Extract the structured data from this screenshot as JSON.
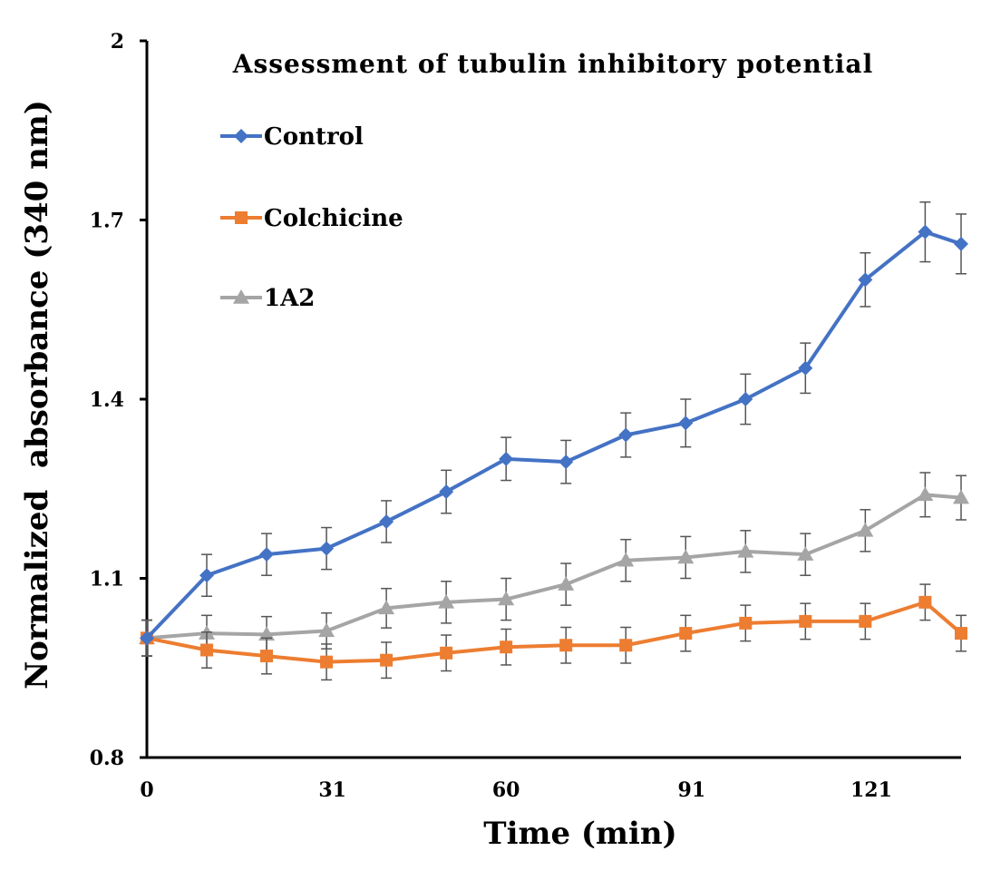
{
  "chart_data": {
    "type": "line",
    "title": "Assessment of tubulin inhibitory potential",
    "xlabel": "Time (min)",
    "ylabel": "Normalized  absorbance (340 nm)",
    "ylim": [
      0.8,
      2.0
    ],
    "xlim": [
      0,
      136
    ],
    "yticks": [
      0.8,
      1.1,
      1.4,
      1.7,
      2.0
    ],
    "ytick_labels": [
      "0.8",
      "1.1",
      "1.4",
      "1.7",
      "2"
    ],
    "xticks": [
      0,
      31,
      60,
      91,
      121
    ],
    "xtick_labels": [
      "0",
      "31",
      "60",
      "91",
      "121"
    ],
    "x": [
      0,
      10,
      20,
      30,
      40,
      50,
      60,
      70,
      80,
      90,
      100,
      110,
      120,
      130,
      136
    ],
    "legend_position": "top-left",
    "series": [
      {
        "name": "Control",
        "color": "#4472C4",
        "marker": "diamond",
        "values": [
          1.0,
          1.105,
          1.14,
          1.15,
          1.195,
          1.245,
          1.3,
          1.295,
          1.34,
          1.36,
          1.4,
          1.452,
          1.6,
          1.68,
          1.66
        ],
        "errors": [
          0.03,
          0.035,
          0.035,
          0.035,
          0.035,
          0.036,
          0.036,
          0.036,
          0.037,
          0.04,
          0.042,
          0.042,
          0.045,
          0.05,
          0.05
        ]
      },
      {
        "name": "Colchicine",
        "color": "#ED7D31",
        "marker": "square",
        "values": [
          1.0,
          0.98,
          0.97,
          0.96,
          0.963,
          0.975,
          0.985,
          0.988,
          0.988,
          1.008,
          1.025,
          1.028,
          1.028,
          1.06,
          1.008
        ],
        "errors": [
          0.03,
          0.03,
          0.03,
          0.03,
          0.03,
          0.03,
          0.03,
          0.03,
          0.03,
          0.03,
          0.03,
          0.03,
          0.03,
          0.03,
          0.03
        ]
      },
      {
        "name": "1A2",
        "color": "#A5A5A5",
        "marker": "triangle",
        "values": [
          1.0,
          1.008,
          1.006,
          1.012,
          1.05,
          1.06,
          1.065,
          1.09,
          1.13,
          1.135,
          1.145,
          1.14,
          1.18,
          1.24,
          1.235
        ],
        "errors": [
          0.03,
          0.03,
          0.03,
          0.03,
          0.033,
          0.035,
          0.035,
          0.035,
          0.035,
          0.035,
          0.035,
          0.035,
          0.035,
          0.037,
          0.037
        ]
      }
    ]
  }
}
